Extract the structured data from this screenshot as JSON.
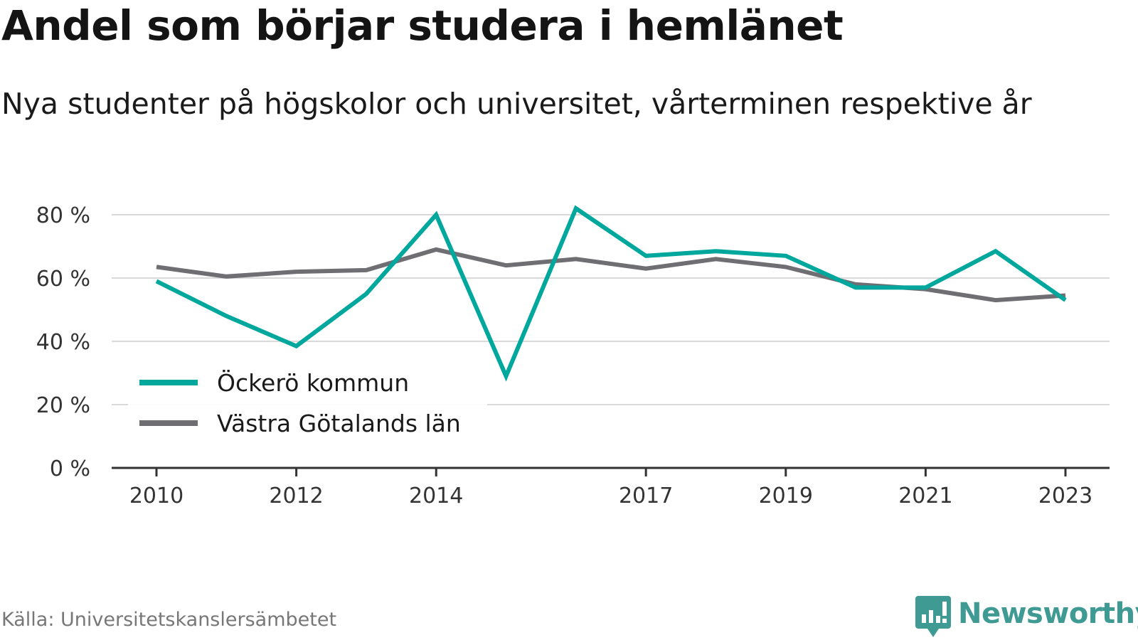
{
  "title": "Andel som börjar studera i hemlänet",
  "subtitle": "Nya studenter på högskolor och universitet, vårterminen respektive år",
  "source": "Källa: Universitetskanslersämbetet",
  "brand": "Newsworthy",
  "chart_data": {
    "type": "line",
    "x": [
      2010,
      2011,
      2012,
      2013,
      2014,
      2015,
      2016,
      2017,
      2018,
      2019,
      2020,
      2021,
      2022,
      2023
    ],
    "x_tick_labels": [
      "2010",
      "2012",
      "2014",
      "2017",
      "2019",
      "2021",
      "2023"
    ],
    "y_tick_labels": [
      "0 %",
      "20 %",
      "40 %",
      "60 %",
      "80 %"
    ],
    "ylim": [
      0,
      80
    ],
    "grid": true,
    "legend_position": "left",
    "series": [
      {
        "name": "Öckerö kommun",
        "color": "#00a79d",
        "values": [
          59,
          48,
          38.5,
          55,
          80,
          29,
          82,
          67,
          68.5,
          67,
          57,
          57,
          68.5,
          53
        ]
      },
      {
        "name": "Västra Götalands län",
        "color": "#6e6e73",
        "values": [
          63.5,
          60.5,
          62,
          62.5,
          69,
          64,
          66,
          63,
          66,
          63.5,
          58,
          56.5,
          53,
          54.5
        ]
      }
    ]
  }
}
